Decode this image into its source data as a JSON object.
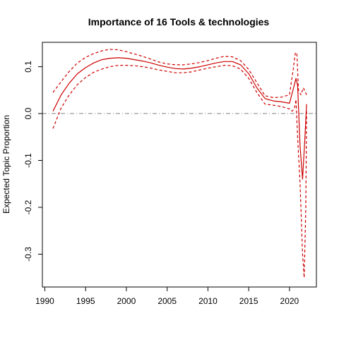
{
  "chart_data": {
    "type": "line",
    "title": "Importance of 16 Tools & technologies",
    "xlabel": "",
    "ylabel": "Expected Topic Proportion",
    "xlim": [
      1989.7,
      2023.3
    ],
    "ylim": [
      -0.37,
      0.152
    ],
    "x_ticks": [
      1990,
      1995,
      2000,
      2005,
      2010,
      2015,
      2020
    ],
    "x_tick_labels": [
      "1990",
      "1995",
      "2000",
      "2005",
      "2010",
      "2015",
      "2020"
    ],
    "y_ticks": [
      0.1,
      0.0,
      -0.1,
      -0.2,
      -0.3
    ],
    "y_tick_labels": [
      "0.1",
      "0.0",
      "-0.1",
      "-0.2",
      "-0.3"
    ],
    "reference_line": {
      "y": 0,
      "style": "dash-dot",
      "color": "#808080"
    },
    "colors": {
      "estimate": "#cc0000",
      "interval": "#cc0000"
    },
    "series": [
      {
        "role": "estimate",
        "style": "solid",
        "x": [
          1991,
          1992,
          1993,
          1994,
          1995,
          1996,
          1997,
          1998,
          1999,
          2000,
          2001,
          2002,
          2003,
          2004,
          2005,
          2006,
          2007,
          2008,
          2009,
          2010,
          2011,
          2012,
          2013,
          2014,
          2015,
          2016,
          2017,
          2018,
          2019,
          2020,
          2020.5,
          2020.8,
          2021,
          2021.3,
          2021.6,
          2021.9,
          2022.1
        ],
        "y": [
          0.005,
          0.04,
          0.065,
          0.085,
          0.098,
          0.108,
          0.115,
          0.118,
          0.119,
          0.118,
          0.115,
          0.112,
          0.108,
          0.103,
          0.099,
          0.096,
          0.095,
          0.097,
          0.1,
          0.104,
          0.108,
          0.111,
          0.111,
          0.104,
          0.085,
          0.055,
          0.032,
          0.027,
          0.025,
          0.022,
          0.055,
          0.075,
          0.06,
          -0.07,
          -0.14,
          -0.05,
          0.02
        ]
      },
      {
        "role": "upper",
        "style": "dashed",
        "x": [
          1991,
          1992,
          1993,
          1994,
          1995,
          1996,
          1997,
          1998,
          1999,
          2000,
          2001,
          2002,
          2003,
          2004,
          2005,
          2006,
          2007,
          2008,
          2009,
          2010,
          2011,
          2012,
          2013,
          2014,
          2015,
          2016,
          2017,
          2018,
          2019,
          2020,
          2020.5,
          2020.7,
          2020.9,
          2021.1,
          2021.4,
          2021.7,
          2022.1
        ],
        "y": [
          0.045,
          0.068,
          0.09,
          0.108,
          0.12,
          0.128,
          0.134,
          0.137,
          0.136,
          0.132,
          0.127,
          0.122,
          0.116,
          0.11,
          0.106,
          0.104,
          0.104,
          0.106,
          0.109,
          0.113,
          0.118,
          0.122,
          0.121,
          0.113,
          0.094,
          0.066,
          0.038,
          0.034,
          0.035,
          0.04,
          0.1,
          0.128,
          0.13,
          0.05,
          0.04,
          0.055,
          0.04
        ]
      },
      {
        "role": "lower",
        "style": "dashed",
        "x": [
          1991,
          1992,
          1993,
          1994,
          1995,
          1996,
          1997,
          1998,
          1999,
          2000,
          2001,
          2002,
          2003,
          2004,
          2005,
          2006,
          2007,
          2008,
          2009,
          2010,
          2011,
          2012,
          2013,
          2014,
          2015,
          2016,
          2017,
          2018,
          2019,
          2020,
          2020.3,
          2020.6,
          2020.8,
          2021,
          2021.3,
          2021.6,
          2021.8,
          2022,
          2022.1
        ],
        "y": [
          -0.032,
          0.012,
          0.04,
          0.062,
          0.077,
          0.088,
          0.095,
          0.1,
          0.103,
          0.103,
          0.102,
          0.1,
          0.097,
          0.093,
          0.09,
          0.087,
          0.087,
          0.089,
          0.093,
          0.097,
          0.1,
          0.103,
          0.102,
          0.095,
          0.075,
          0.045,
          0.02,
          0.018,
          0.015,
          0.01,
          0.005,
          0.01,
          0.03,
          -0.05,
          -0.15,
          -0.3,
          -0.35,
          -0.2,
          0.005
        ]
      }
    ]
  }
}
